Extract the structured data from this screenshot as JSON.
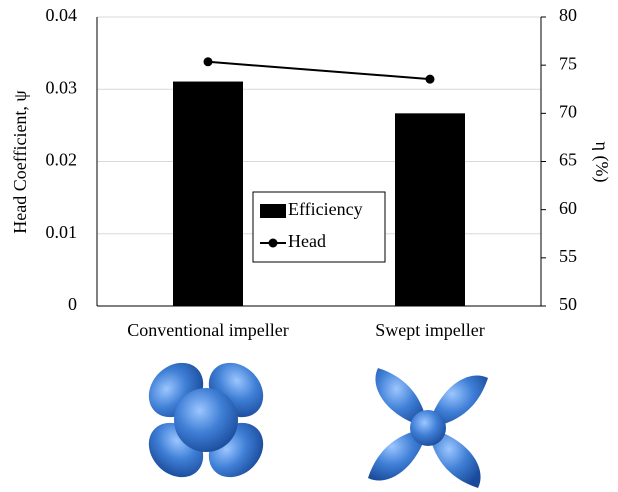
{
  "chart_data": {
    "type": "bar_line",
    "categories": [
      "Conventional impeller",
      "Swept impeller"
    ],
    "y_label": "Head Coefficient, ψ",
    "y2_label": "η (%)",
    "ylim": [
      0,
      0.04
    ],
    "yticks": [
      0,
      0.01,
      0.02,
      0.03,
      0.04
    ],
    "y2lim": [
      50,
      80
    ],
    "y2ticks": [
      50,
      55,
      60,
      65,
      70,
      75,
      80
    ],
    "grid": true,
    "series": [
      {
        "name": "Efficiency",
        "type": "bar",
        "axis": "y2",
        "color": "#000000",
        "values": [
          73.3,
          70.0
        ]
      },
      {
        "name": "Head",
        "type": "line",
        "axis": "y",
        "color": "#000000",
        "values": [
          0.0338,
          0.0314
        ]
      }
    ]
  }
}
